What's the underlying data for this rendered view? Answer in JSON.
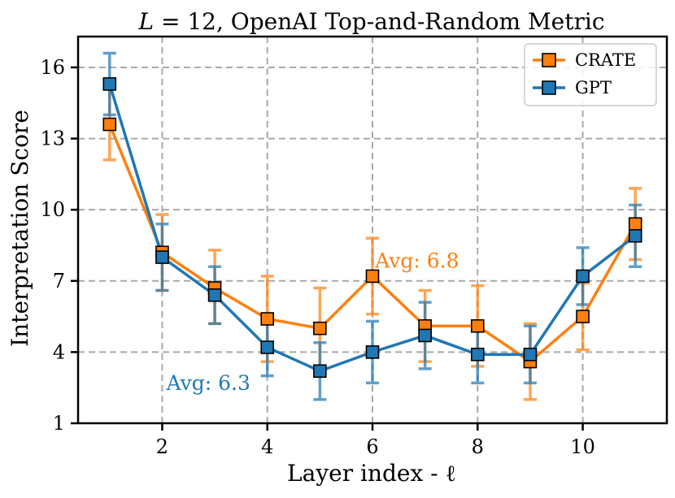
{
  "chart_data": {
    "type": "line",
    "title": "L = 12, OpenAI Top-and-Random Metric",
    "title_parts": {
      "var": "L",
      "eq": " = 12, ",
      "rest": "OpenAI Top-and-Random Metric"
    },
    "xlabel": "Layer index - ℓ",
    "ylabel": "Interpretation Score",
    "xlim": [
      0.4,
      11.6
    ],
    "ylim": [
      1,
      17.3
    ],
    "xticks": [
      2,
      4,
      6,
      8,
      10
    ],
    "yticks": [
      1,
      4,
      7,
      10,
      13,
      16
    ],
    "grid": true,
    "legend_position": "top-right",
    "x": [
      1,
      2,
      3,
      4,
      5,
      6,
      7,
      8,
      9,
      10,
      11
    ],
    "series": [
      {
        "name": "CRATE",
        "color": "#ff7f0e",
        "values": [
          13.6,
          8.2,
          6.7,
          5.4,
          5.0,
          7.2,
          5.1,
          5.1,
          3.6,
          5.5,
          9.4
        ],
        "err_low": [
          12.1,
          6.6,
          5.2,
          3.6,
          3.3,
          5.6,
          3.6,
          3.4,
          2.0,
          4.1,
          7.9
        ],
        "err_high": [
          15.1,
          9.8,
          8.3,
          7.2,
          6.7,
          8.8,
          6.6,
          6.8,
          5.2,
          6.9,
          10.9
        ]
      },
      {
        "name": "GPT",
        "color": "#1f77b4",
        "values": [
          15.3,
          8.0,
          6.4,
          4.2,
          3.2,
          4.0,
          4.7,
          3.9,
          3.9,
          7.2,
          8.9
        ],
        "err_low": [
          14.0,
          6.6,
          5.2,
          3.0,
          2.0,
          2.7,
          3.3,
          2.7,
          2.7,
          6.0,
          7.6
        ],
        "err_high": [
          16.6,
          9.4,
          7.6,
          5.4,
          4.4,
          5.3,
          6.1,
          5.1,
          5.1,
          8.4,
          10.2
        ]
      }
    ],
    "annotations": [
      {
        "text": "Avg: 6.8",
        "series": "CRATE",
        "x": 6.05,
        "y": 7.55,
        "color": "#ff7f0e"
      },
      {
        "text": "Avg: 6.3",
        "series": "GPT",
        "x": 2.08,
        "y": 2.4,
        "color": "#1f77b4"
      }
    ]
  }
}
